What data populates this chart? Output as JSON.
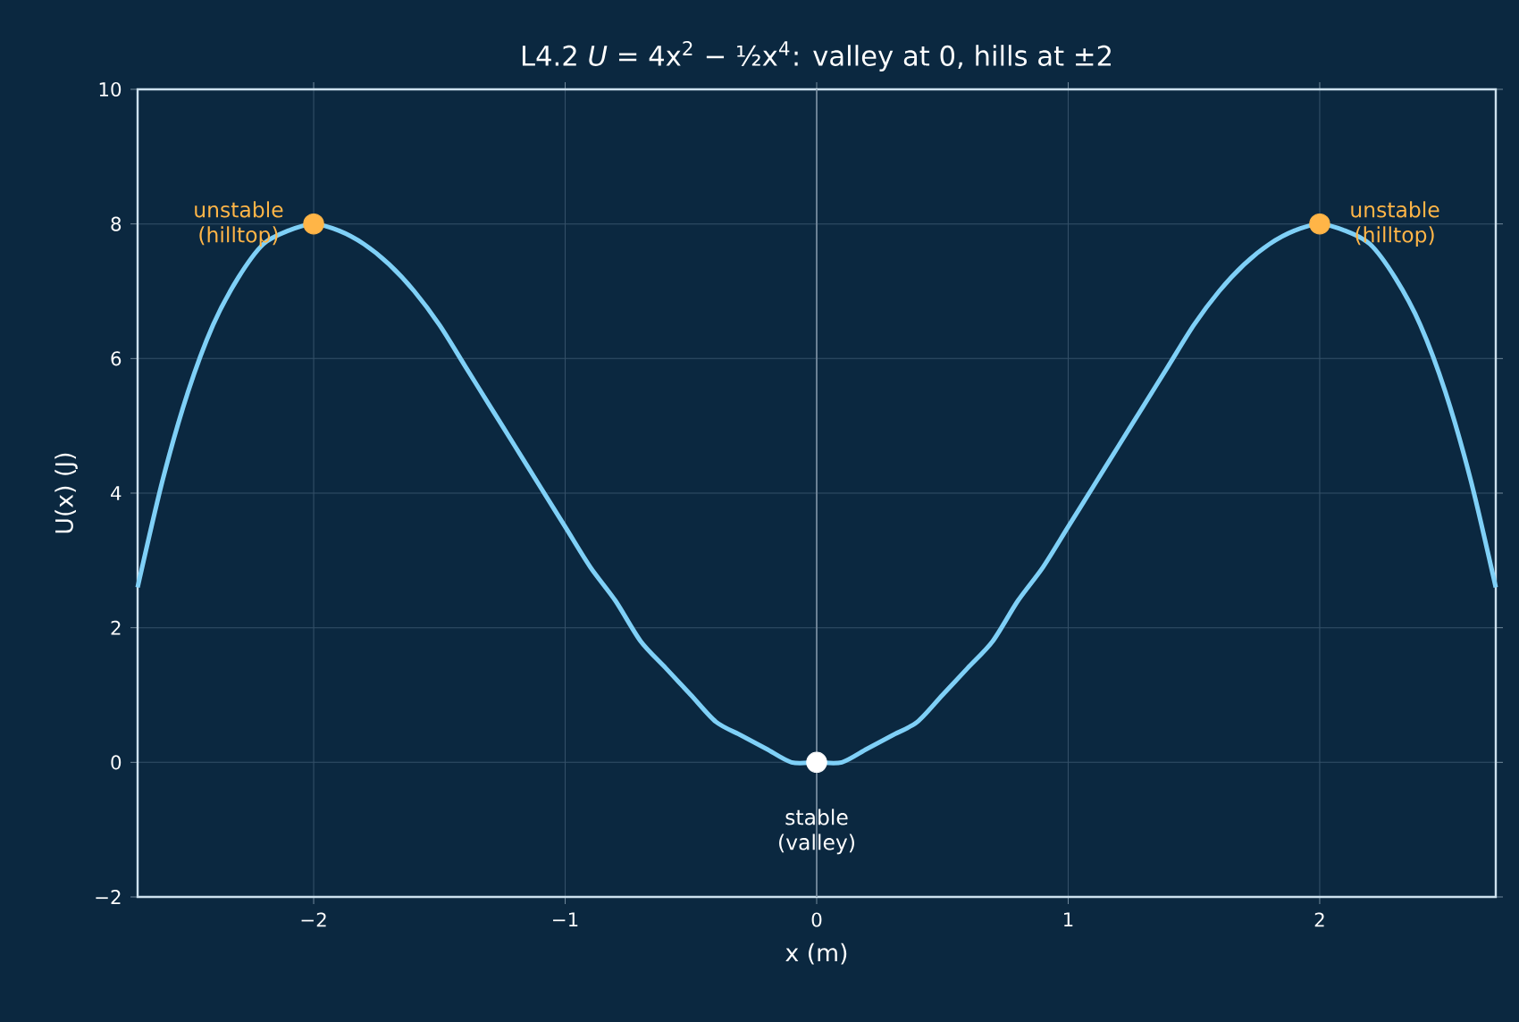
{
  "chart_data": {
    "type": "line",
    "title": "L4.2  *U* = 4x$^{2}$ − ½x$^{4}$: valley at 0, hills at ±2",
    "xlabel": "x (m)",
    "ylabel": "U(x) (J)",
    "xlim": [
      -2.7,
      2.7
    ],
    "ylim": [
      -2,
      10
    ],
    "xticks": [
      {
        "value": -2,
        "label": "−2"
      },
      {
        "value": -1,
        "label": "−1"
      },
      0,
      1,
      2
    ],
    "yticks": [
      {
        "value": -2,
        "label": "−2"
      },
      0,
      2,
      4,
      6,
      8,
      10
    ],
    "grid": true,
    "ref_lines": [
      {
        "axis": "x",
        "value": 0,
        "color": "#7f93a6"
      }
    ],
    "series": [
      {
        "color": "#7fd0f7",
        "marker": "none",
        "x": [
          -2.7,
          -2.6,
          -2.5,
          -2.4,
          -2.3,
          -2.2,
          -2.1,
          -2.0,
          -1.9,
          -1.8,
          -1.7,
          -1.6,
          -1.5,
          -1.4,
          -1.3,
          -1.2,
          -1.1,
          -1.0,
          -0.9,
          -0.8,
          -0.7,
          -0.6,
          -0.5,
          -0.4,
          -0.3,
          -0.2,
          -0.1,
          0,
          0.1,
          0.2,
          0.3,
          0.4,
          0.5,
          0.6,
          0.7,
          0.8,
          0.9,
          1.0,
          1.1,
          1.2,
          1.3,
          1.4,
          1.5,
          1.6,
          1.7,
          1.8,
          1.9,
          2.0,
          2.1,
          2.2,
          2.3,
          2.4,
          2.5,
          2.6,
          2.7
        ],
        "values": [
          2.6,
          4.2,
          5.5,
          6.5,
          7.2,
          7.7,
          7.9,
          8.0,
          7.9,
          7.7,
          7.4,
          7.0,
          6.5,
          5.9,
          5.3,
          4.7,
          4.1,
          3.5,
          2.9,
          2.4,
          1.8,
          1.4,
          1.0,
          0.6,
          0.4,
          0.2,
          0.0,
          0.0,
          0.0,
          0.2,
          0.4,
          0.6,
          1.0,
          1.4,
          1.8,
          2.4,
          2.9,
          3.5,
          4.1,
          4.7,
          5.3,
          5.9,
          6.5,
          7.0,
          7.4,
          7.7,
          7.9,
          8.0,
          7.9,
          7.7,
          7.2,
          6.5,
          5.5,
          4.2,
          2.6
        ]
      },
      {
        "type": "scatter",
        "color": "#ffb547",
        "marker": "circle",
        "x": [
          -2,
          2
        ],
        "values": [
          8,
          8
        ]
      },
      {
        "type": "scatter",
        "color": "#ffffff",
        "marker": "circle",
        "x": [
          0
        ],
        "values": [
          0
        ]
      }
    ],
    "annotations": [
      {
        "text": "unstable (hilltop)",
        "x": -2,
        "y": 8
      },
      {
        "text": "unstable (hilltop)",
        "x": 2,
        "y": 8
      },
      {
        "text": "stable (valley)",
        "x": 0,
        "y": 0
      }
    ]
  }
}
